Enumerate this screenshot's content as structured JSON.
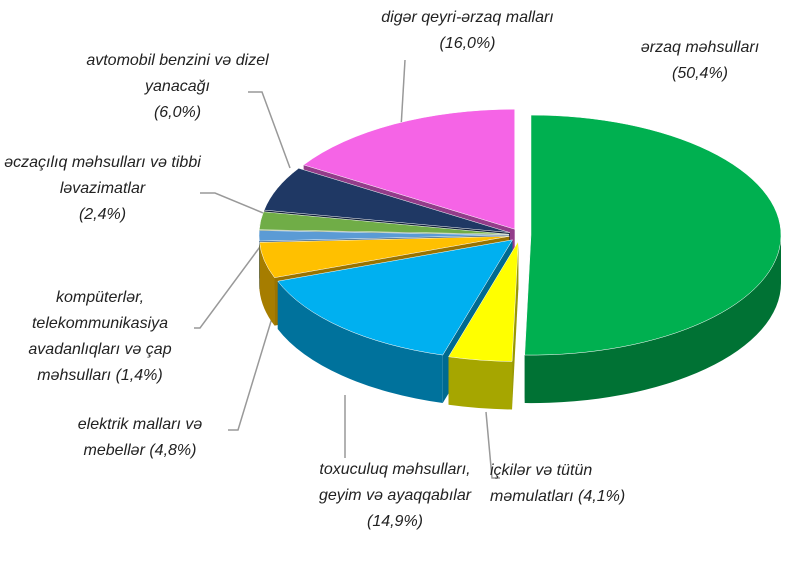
{
  "chart_data": {
    "type": "pie",
    "categories": [
      "ərzaq məhsulları",
      "içkilər və tütün məmulatları",
      "toxuculuq məhsulları, geyim və ayaqqabılar",
      "elektrik malları və mebellər",
      "kompüterlər, telekommunikasiya avadanlıqları və çap məhsulları",
      "əczaçılıq məhsulları və tibbi ləvazimatlar",
      "avtomobil benzini və dizel yanacağı",
      "digər qeyri-ərzaq malları"
    ],
    "values": [
      50.4,
      4.1,
      14.9,
      4.8,
      1.4,
      2.4,
      6.0,
      16.0
    ],
    "value_labels": [
      "(50,4%)",
      "(4,1%)",
      "(14,9%)",
      "(4,8%)",
      "(1,4%)",
      "(2,4%)",
      "(6,0%)",
      "(16,0%)"
    ],
    "colors": [
      "#00b050",
      "#ffff00",
      "#00b0f0",
      "#ffc000",
      "#5b9bd5",
      "#70ad47",
      "#1f3864",
      "#f564e6"
    ]
  }
}
